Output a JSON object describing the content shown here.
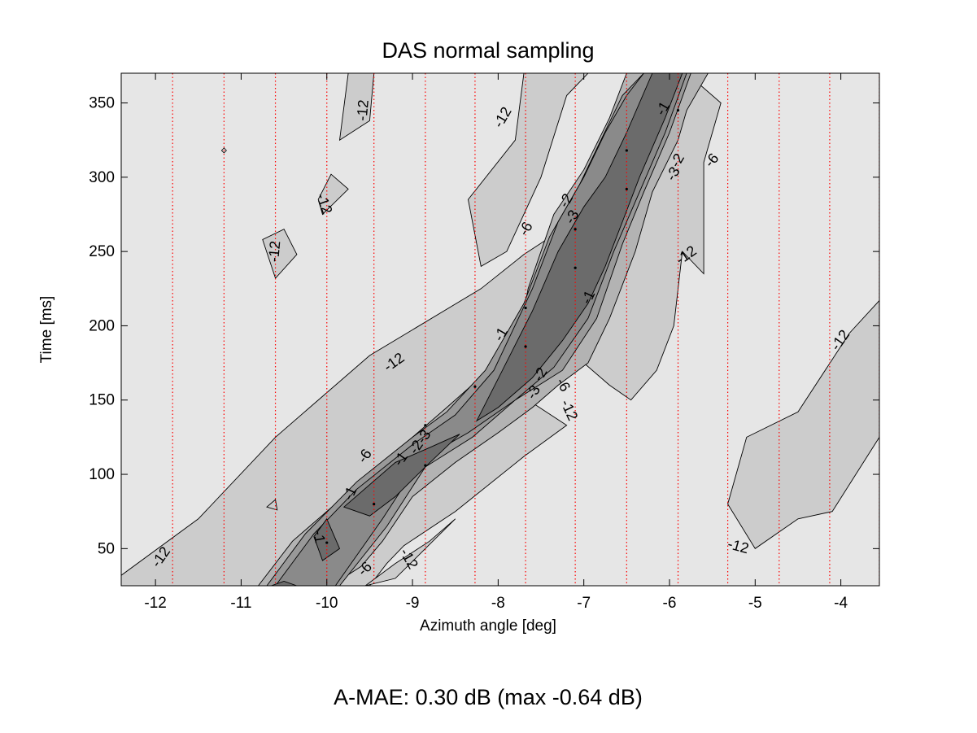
{
  "chart_data": {
    "type": "contour",
    "title": "DAS normal sampling",
    "xlabel": "Azimuth angle [deg]",
    "ylabel": "Time [ms]",
    "xlim": [
      -12.4,
      -3.55
    ],
    "ylim": [
      25,
      370
    ],
    "xticks": [
      -12,
      -11,
      -10,
      -9,
      -8,
      -7,
      -6,
      -5,
      -4
    ],
    "xtick_labels": [
      "-12",
      "-11",
      "-10",
      "-9",
      "-8",
      "-7",
      "-6",
      "-5",
      "-4"
    ],
    "yticks": [
      50,
      100,
      150,
      200,
      250,
      300,
      350
    ],
    "ytick_labels": [
      "50",
      "100",
      "150",
      "200",
      "250",
      "300",
      "350"
    ],
    "contour_levels": [
      -12,
      -6,
      -3,
      -2,
      -1
    ],
    "level_colors": [
      "#e6e6e6",
      "#cccccc",
      "#b3b3b3",
      "#999999",
      "#8a8a8a",
      "#6b6b6b"
    ],
    "reference_lines_x": [
      -11.8,
      -11.2,
      -10.6,
      -10.0,
      -9.45,
      -8.85,
      -8.27,
      -7.68,
      -7.1,
      -6.5,
      -5.9,
      -5.32,
      -4.72,
      -4.13,
      -3.55
    ],
    "reference_line_color": "#ff0000",
    "contours": [
      {
        "level": -12,
        "polygons": [
          [
            [
              -12.4,
              32
            ],
            [
              -11.5,
              70
            ],
            [
              -10.6,
              125
            ],
            [
              -9.5,
              180
            ],
            [
              -8.2,
              225
            ],
            [
              -7.7,
              248
            ],
            [
              -7.25,
              265
            ],
            [
              -6.65,
              320
            ],
            [
              -6.2,
              370
            ],
            [
              -5.8,
              370
            ],
            [
              -5.4,
              350
            ],
            [
              -5.6,
              310
            ],
            [
              -5.6,
              235
            ],
            [
              -5.85,
              250
            ],
            [
              -5.95,
              200
            ],
            [
              -6.15,
              170
            ],
            [
              -6.45,
              150
            ],
            [
              -6.7,
              160
            ],
            [
              -7.0,
              175
            ],
            [
              -7.35,
              165
            ],
            [
              -7.65,
              150
            ],
            [
              -7.2,
              133
            ],
            [
              -7.7,
              112
            ],
            [
              -8.5,
              75
            ],
            [
              -9.1,
              52
            ],
            [
              -9.3,
              40
            ],
            [
              -9.5,
              25
            ],
            [
              -12.4,
              25
            ]
          ],
          [
            [
              -9.55,
              25
            ],
            [
              -9.2,
              40
            ],
            [
              -8.8,
              55
            ],
            [
              -8.5,
              70
            ],
            [
              -8.85,
              50
            ],
            [
              -9.2,
              30
            ]
          ],
          [
            [
              -7.7,
              370
            ],
            [
              -7.8,
              325
            ],
            [
              -8.35,
              285
            ],
            [
              -8.2,
              240
            ],
            [
              -7.9,
              250
            ],
            [
              -7.5,
              300
            ],
            [
              -7.2,
              355
            ],
            [
              -6.95,
              370
            ]
          ],
          [
            [
              -9.45,
              370
            ],
            [
              -9.5,
              338
            ],
            [
              -9.85,
              325
            ],
            [
              -9.75,
              370
            ]
          ],
          [
            [
              -10.5,
              265
            ],
            [
              -10.35,
              248
            ],
            [
              -10.6,
              232
            ],
            [
              -10.75,
              258
            ]
          ],
          [
            [
              -9.95,
              302
            ],
            [
              -10.1,
              285
            ],
            [
              -10.05,
              275
            ],
            [
              -9.75,
              292
            ]
          ],
          [
            [
              -5.32,
              80
            ],
            [
              -5.0,
              50
            ],
            [
              -4.5,
              70
            ],
            [
              -4.1,
              75
            ],
            [
              -3.55,
              125
            ],
            [
              -3.55,
              217
            ],
            [
              -3.9,
              195
            ],
            [
              -4.5,
              142
            ],
            [
              -5.1,
              125
            ]
          ],
          [
            [
              -10.6,
              83
            ],
            [
              -10.7,
              78
            ],
            [
              -10.58,
              76
            ]
          ]
        ]
      },
      {
        "level": -6,
        "polygons": [
          [
            [
              -10.8,
              25
            ],
            [
              -10.4,
              55
            ],
            [
              -9.7,
              90
            ],
            [
              -9.2,
              115
            ],
            [
              -8.6,
              145
            ],
            [
              -8.15,
              168
            ],
            [
              -7.75,
              195
            ],
            [
              -7.65,
              225
            ],
            [
              -7.35,
              275
            ],
            [
              -7.0,
              305
            ],
            [
              -6.7,
              340
            ],
            [
              -6.5,
              370
            ],
            [
              -5.55,
              370
            ],
            [
              -5.8,
              345
            ],
            [
              -5.9,
              325
            ],
            [
              -6.2,
              290
            ],
            [
              -6.4,
              250
            ],
            [
              -6.7,
              205
            ],
            [
              -6.95,
              175
            ],
            [
              -7.3,
              160
            ],
            [
              -7.6,
              145
            ],
            [
              -8.0,
              128
            ],
            [
              -8.5,
              108
            ],
            [
              -9.0,
              85
            ],
            [
              -9.35,
              55
            ],
            [
              -9.6,
              38
            ],
            [
              -9.95,
              25
            ]
          ]
        ]
      },
      {
        "level": -3,
        "polygons": [
          [
            [
              -10.7,
              25
            ],
            [
              -10.25,
              60
            ],
            [
              -9.65,
              95
            ],
            [
              -9.0,
              125
            ],
            [
              -8.6,
              142
            ],
            [
              -8.15,
              170
            ],
            [
              -7.7,
              215
            ],
            [
              -7.4,
              260
            ],
            [
              -7.05,
              295
            ],
            [
              -6.8,
              325
            ],
            [
              -6.55,
              355
            ],
            [
              -6.3,
              370
            ],
            [
              -5.75,
              370
            ],
            [
              -6.0,
              330
            ],
            [
              -6.3,
              290
            ],
            [
              -6.55,
              255
            ],
            [
              -6.85,
              205
            ],
            [
              -7.25,
              170
            ],
            [
              -7.8,
              150
            ],
            [
              -8.3,
              125
            ],
            [
              -8.85,
              105
            ],
            [
              -9.3,
              65
            ],
            [
              -9.85,
              25
            ]
          ]
        ]
      },
      {
        "level": -2,
        "polygons": [
          [
            [
              -10.6,
              25
            ],
            [
              -10.15,
              60
            ],
            [
              -9.65,
              90
            ],
            [
              -9.0,
              120
            ],
            [
              -8.5,
              140
            ],
            [
              -8.05,
              170
            ],
            [
              -7.6,
              225
            ],
            [
              -7.3,
              270
            ],
            [
              -7.0,
              300
            ],
            [
              -6.75,
              330
            ],
            [
              -6.5,
              355
            ],
            [
              -6.3,
              370
            ],
            [
              -5.8,
              370
            ],
            [
              -6.05,
              330
            ],
            [
              -6.35,
              290
            ],
            [
              -6.65,
              250
            ],
            [
              -6.95,
              205
            ],
            [
              -7.35,
              172
            ],
            [
              -7.8,
              150
            ],
            [
              -8.35,
              128
            ],
            [
              -8.9,
              110
            ],
            [
              -9.35,
              70
            ],
            [
              -9.9,
              25
            ]
          ]
        ]
      },
      {
        "level": -1,
        "polygons": [
          [
            [
              -9.8,
              78
            ],
            [
              -9.2,
              108
            ],
            [
              -8.8,
              118
            ],
            [
              -8.45,
              127
            ],
            [
              -8.85,
              105
            ],
            [
              -9.2,
              85
            ],
            [
              -9.5,
              72
            ]
          ],
          [
            [
              -10.15,
              58
            ],
            [
              -10.0,
              70
            ],
            [
              -9.85,
              50
            ],
            [
              -10.05,
              42
            ]
          ],
          [
            [
              -8.25,
              136
            ],
            [
              -7.95,
              170
            ],
            [
              -7.6,
              210
            ],
            [
              -7.3,
              250
            ],
            [
              -7.0,
              280
            ],
            [
              -6.75,
              300
            ],
            [
              -6.5,
              330
            ],
            [
              -6.2,
              370
            ],
            [
              -5.85,
              370
            ],
            [
              -6.05,
              340
            ],
            [
              -6.35,
              300
            ],
            [
              -6.55,
              270
            ],
            [
              -6.75,
              240
            ],
            [
              -6.95,
              215
            ],
            [
              -7.25,
              190
            ],
            [
              -7.6,
              165
            ],
            [
              -8.0,
              145
            ]
          ],
          [
            [
              -10.65,
              25
            ],
            [
              -10.5,
              28
            ],
            [
              -10.35,
              25
            ]
          ]
        ]
      }
    ],
    "contour_labels": [
      {
        "text": "-12",
        "x": -11.93,
        "y": 44,
        "angle": -55
      },
      {
        "text": "-12",
        "x": -10.6,
        "y": 250,
        "angle": -85
      },
      {
        "text": "-12",
        "x": -10.04,
        "y": 282,
        "angle": 70
      },
      {
        "text": "-12",
        "x": -9.57,
        "y": 345,
        "angle": -85
      },
      {
        "text": "-12",
        "x": -7.94,
        "y": 340,
        "angle": -60
      },
      {
        "text": "-12",
        "x": -9.21,
        "y": 175,
        "angle": -35
      },
      {
        "text": "-12",
        "x": -5.8,
        "y": 247,
        "angle": -35
      },
      {
        "text": "-12",
        "x": -4.0,
        "y": 190,
        "angle": -55
      },
      {
        "text": "-12",
        "x": -5.2,
        "y": 51,
        "angle": 15
      },
      {
        "text": "-12",
        "x": -9.05,
        "y": 43,
        "angle": 60
      },
      {
        "text": "-12",
        "x": -7.18,
        "y": 143,
        "angle": 65
      },
      {
        "text": "-6",
        "x": -9.55,
        "y": 112,
        "angle": -55
      },
      {
        "text": "-6",
        "x": -9.55,
        "y": 36,
        "angle": -45
      },
      {
        "text": "-6",
        "x": -7.67,
        "y": 265,
        "angle": -60
      },
      {
        "text": "-6",
        "x": -7.25,
        "y": 160,
        "angle": 60
      },
      {
        "text": "-6",
        "x": -5.5,
        "y": 311,
        "angle": -50
      },
      {
        "text": "-3",
        "x": -8.86,
        "y": 125,
        "angle": -55
      },
      {
        "text": "-3",
        "x": -7.58,
        "y": 155,
        "angle": -60
      },
      {
        "text": "-3",
        "x": -7.13,
        "y": 273,
        "angle": -60
      },
      {
        "text": "-3",
        "x": -5.95,
        "y": 302,
        "angle": -60
      },
      {
        "text": "-2",
        "x": -8.95,
        "y": 118,
        "angle": -55
      },
      {
        "text": "-2",
        "x": -7.5,
        "y": 167,
        "angle": -60
      },
      {
        "text": "-2",
        "x": -7.2,
        "y": 284,
        "angle": -60
      },
      {
        "text": "-2",
        "x": -5.9,
        "y": 311,
        "angle": -60
      },
      {
        "text": "-1",
        "x": -9.13,
        "y": 110,
        "angle": -55
      },
      {
        "text": "-1",
        "x": -9.72,
        "y": 87,
        "angle": -65
      },
      {
        "text": "-1",
        "x": -10.1,
        "y": 58,
        "angle": 80
      },
      {
        "text": "-1",
        "x": -7.96,
        "y": 194,
        "angle": -60
      },
      {
        "text": "-1",
        "x": -6.94,
        "y": 219,
        "angle": -65
      },
      {
        "text": "-1",
        "x": -6.07,
        "y": 346,
        "angle": -60
      }
    ],
    "markers": [
      {
        "x": -11.2,
        "y": 318,
        "style": "diamond"
      },
      {
        "x": -10.0,
        "y": 54,
        "style": "dot"
      },
      {
        "x": -9.45,
        "y": 80,
        "style": "dot"
      },
      {
        "x": -8.85,
        "y": 106,
        "style": "dot"
      },
      {
        "x": -8.85,
        "y": 133,
        "style": "dot"
      },
      {
        "x": -8.27,
        "y": 159,
        "style": "dot"
      },
      {
        "x": -7.68,
        "y": 186,
        "style": "dot"
      },
      {
        "x": -7.68,
        "y": 212,
        "style": "dot"
      },
      {
        "x": -7.1,
        "y": 239,
        "style": "dot"
      },
      {
        "x": -7.1,
        "y": 265,
        "style": "dot"
      },
      {
        "x": -6.5,
        "y": 292,
        "style": "dot"
      },
      {
        "x": -6.5,
        "y": 318,
        "style": "dot"
      },
      {
        "x": -5.9,
        "y": 345,
        "style": "dot"
      }
    ],
    "grid": false,
    "legend": "none"
  },
  "footer": {
    "text": "A-MAE: 0.30 dB (max -0.64 dB)"
  }
}
